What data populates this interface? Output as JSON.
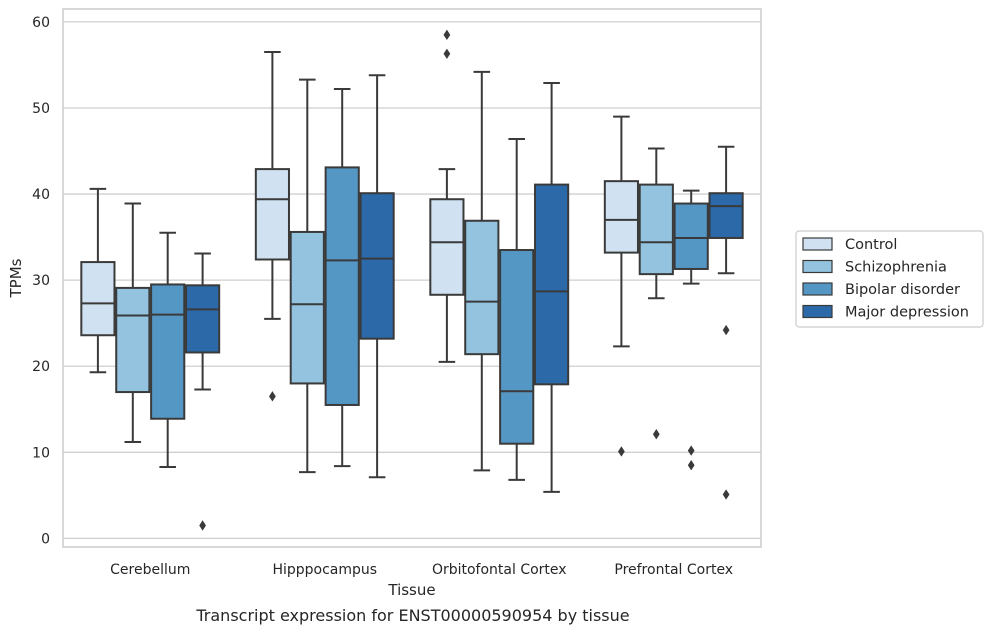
{
  "caption": "Transcript expression for ENST00000590954 by tissue",
  "chart_data": {
    "type": "box",
    "xlabel": "Tissue",
    "ylabel": "TPMs",
    "ylim": [
      -1,
      61.5
    ],
    "yticks": [
      0,
      10,
      20,
      30,
      40,
      50,
      60
    ],
    "grid": true,
    "legend_position": "right",
    "categories": [
      "Cerebellum",
      "Hipppocampus",
      "Orbitofontal Cortex",
      "Prefrontal Cortex"
    ],
    "series": [
      {
        "name": "Control",
        "color": "#d0e2f1",
        "boxes": [
          {
            "whislo": 19.3,
            "q1": 23.6,
            "med": 27.3,
            "q3": 32.1,
            "whishi": 40.6,
            "fliers": []
          },
          {
            "whislo": 25.5,
            "q1": 32.4,
            "med": 39.4,
            "q3": 42.9,
            "whishi": 56.5,
            "fliers": [
              16.5
            ]
          },
          {
            "whislo": 20.5,
            "q1": 28.3,
            "med": 34.4,
            "q3": 39.4,
            "whishi": 42.9,
            "fliers": [
              58.5,
              56.3
            ]
          },
          {
            "whislo": 22.3,
            "q1": 33.2,
            "med": 37.0,
            "q3": 41.5,
            "whishi": 49.0,
            "fliers": [
              10.1
            ]
          }
        ]
      },
      {
        "name": "Schizophrenia",
        "color": "#93c3df",
        "boxes": [
          {
            "whislo": 11.2,
            "q1": 17.0,
            "med": 25.9,
            "q3": 29.1,
            "whishi": 38.9,
            "fliers": []
          },
          {
            "whislo": 7.7,
            "q1": 18.0,
            "med": 27.2,
            "q3": 35.6,
            "whishi": 53.3,
            "fliers": []
          },
          {
            "whislo": 7.9,
            "q1": 21.4,
            "med": 27.5,
            "q3": 36.9,
            "whishi": 54.2,
            "fliers": []
          },
          {
            "whislo": 27.9,
            "q1": 30.7,
            "med": 34.4,
            "q3": 41.1,
            "whishi": 45.3,
            "fliers": [
              12.1
            ]
          }
        ]
      },
      {
        "name": "Bipolar disorder",
        "color": "#5497c5",
        "boxes": [
          {
            "whislo": 8.3,
            "q1": 13.9,
            "med": 26.0,
            "q3": 29.5,
            "whishi": 35.5,
            "fliers": []
          },
          {
            "whislo": 8.4,
            "q1": 15.5,
            "med": 32.3,
            "q3": 43.1,
            "whishi": 52.2,
            "fliers": []
          },
          {
            "whislo": 6.8,
            "q1": 11.0,
            "med": 17.1,
            "q3": 33.5,
            "whishi": 46.4,
            "fliers": []
          },
          {
            "whislo": 29.6,
            "q1": 31.3,
            "med": 34.9,
            "q3": 38.9,
            "whishi": 40.4,
            "fliers": [
              10.2,
              8.5
            ]
          }
        ]
      },
      {
        "name": "Major depression",
        "color": "#2b69a8",
        "boxes": [
          {
            "whislo": 17.3,
            "q1": 21.6,
            "med": 26.6,
            "q3": 29.4,
            "whishi": 33.1,
            "fliers": [
              1.5
            ]
          },
          {
            "whislo": 7.1,
            "q1": 23.2,
            "med": 32.5,
            "q3": 40.1,
            "whishi": 53.8,
            "fliers": []
          },
          {
            "whislo": 5.4,
            "q1": 17.9,
            "med": 28.7,
            "q3": 41.1,
            "whishi": 52.9,
            "fliers": []
          },
          {
            "whislo": 30.8,
            "q1": 34.9,
            "med": 38.6,
            "q3": 40.1,
            "whishi": 45.5,
            "fliers": [
              24.2,
              5.1
            ]
          }
        ]
      }
    ]
  }
}
